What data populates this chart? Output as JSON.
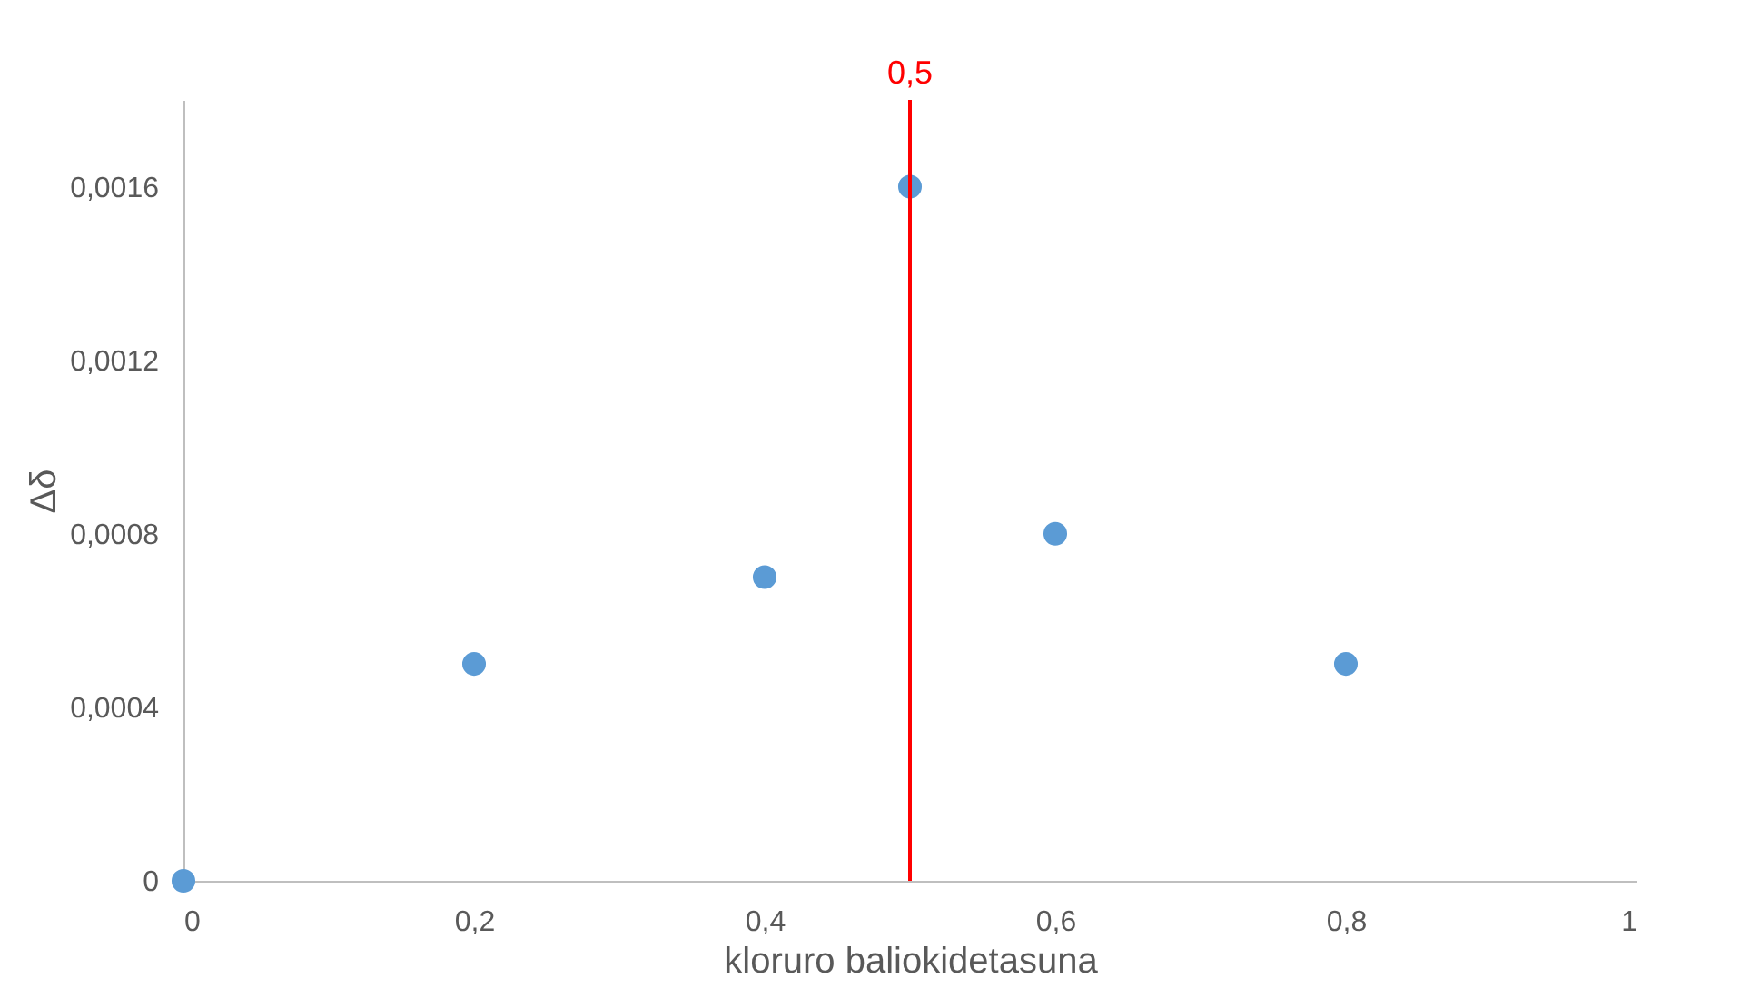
{
  "chart_data": {
    "type": "scatter",
    "xlabel": "kloruro baliokidetasuna",
    "ylabel": "Δδ",
    "x": [
      0,
      0.2,
      0.4,
      0.5,
      0.6,
      0.8
    ],
    "series": [
      {
        "color": "#5b9bd5",
        "values": [
          0,
          0.0005,
          0.0007,
          0.0016,
          0.0008,
          0.0005
        ]
      }
    ],
    "xlim": [
      0,
      1
    ],
    "ylim": [
      0,
      0.0018
    ],
    "xticks": [
      0,
      {
        "value": 0.2,
        "label": "0,2"
      },
      {
        "value": 0.4,
        "label": "0,4"
      },
      {
        "value": 0.6,
        "label": "0,6"
      },
      {
        "value": 0.8,
        "label": "0,8"
      },
      1
    ],
    "yticks": [
      0,
      {
        "value": 0.0004,
        "label": "0,0004"
      },
      {
        "value": 0.0008,
        "label": "0,0008"
      },
      {
        "value": 0.0012,
        "label": "0,0012"
      },
      {
        "value": 0.0016,
        "label": "0,0016"
      }
    ],
    "ref_lines": [
      {
        "axis": "x",
        "value": 0.5,
        "label": "0,5",
        "color": "#ff0000"
      }
    ],
    "grid": false,
    "legend": false,
    "marker": "circle"
  }
}
